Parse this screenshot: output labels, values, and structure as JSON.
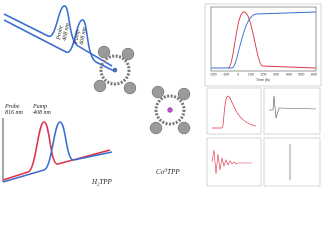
{
  "pulse_labels": {
    "upper_probe": [
      "Probe",
      "408 nm"
    ],
    "upper_pump": [
      "Pump",
      "408 nm"
    ],
    "lower_probe": [
      "Probe",
      "816 nm"
    ],
    "lower_pump": [
      "Pump",
      "408 nm"
    ]
  },
  "molecules": {
    "free_base": {
      "main": "H",
      "sub": "2",
      "rest": "TPP"
    },
    "cobalt": {
      "main": "Co",
      "sup": "II",
      "rest": "TPP"
    }
  },
  "kinetics_panel": {
    "x_tick_labels": [
      "-200",
      "-100",
      "0",
      "100",
      "200",
      "300",
      "400",
      "500",
      "600"
    ],
    "x_label": "Time (fs)"
  }
}
